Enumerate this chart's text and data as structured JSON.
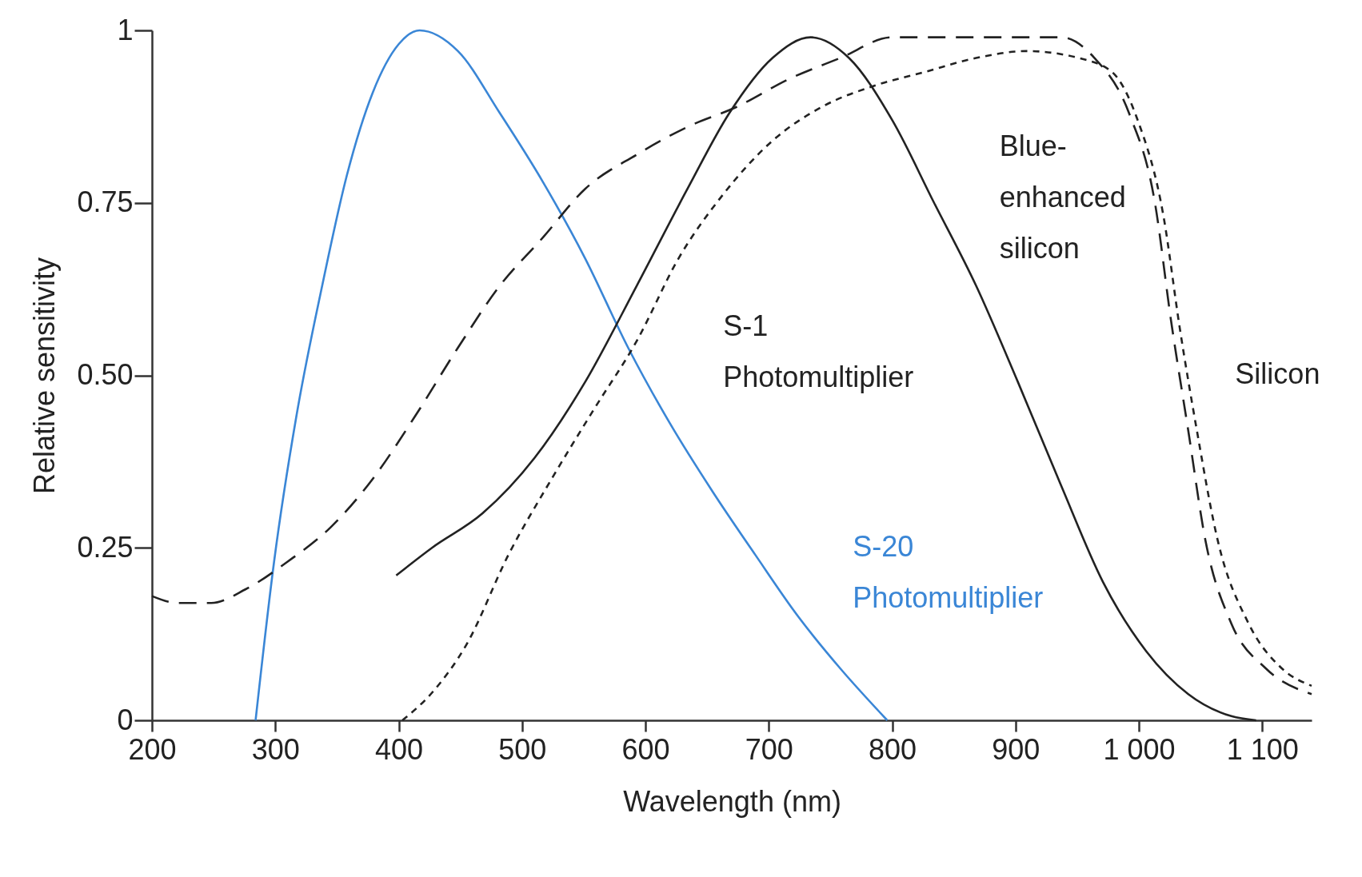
{
  "chart_data": {
    "type": "line",
    "xlabel": "Wavelength (nm)",
    "ylabel": "Relative sensitivity",
    "xlim": [
      200,
      1140
    ],
    "xticks": [
      200,
      300,
      400,
      500,
      600,
      700,
      800,
      900,
      {
        "value": 1000,
        "label": "1 000"
      },
      {
        "value": 1100,
        "label": "1 100"
      }
    ],
    "ylim": [
      0,
      1
    ],
    "yticks": [
      0,
      {
        "value": 0.25,
        "label": "0.25"
      },
      {
        "value": 0.5,
        "label": "0.50"
      },
      {
        "value": 0.75,
        "label": "0.75"
      },
      1
    ],
    "grid": false,
    "legend": false,
    "marker": "none",
    "series": [
      {
        "name": "S-20 Photomultiplier",
        "color": "#3a86d6",
        "line_style": "solid",
        "x": [
          284,
          299,
          317,
          338,
          358,
          379,
          400,
          417,
          448,
          482,
          517,
          551,
          586,
          620,
          655,
          689,
          724,
          758,
          796
        ],
        "values": [
          0,
          0.23,
          0.44,
          0.63,
          0.79,
          0.91,
          0.98,
          1.0,
          0.97,
          0.88,
          0.78,
          0.67,
          0.54,
          0.43,
          0.33,
          0.24,
          0.15,
          0.075,
          0
        ]
      },
      {
        "name": "S-1 Photomultiplier",
        "color": "#222222",
        "line_style": "solid",
        "x": [
          398,
          427,
          468,
          510,
          551,
          593,
          634,
          668,
          703,
          734,
          765,
          800,
          834,
          868,
          902,
          937,
          971,
          1006,
          1040,
          1075,
          1095
        ],
        "values": [
          0.21,
          0.25,
          0.3,
          0.38,
          0.49,
          0.63,
          0.77,
          0.88,
          0.96,
          0.99,
          0.96,
          0.87,
          0.75,
          0.63,
          0.49,
          0.34,
          0.2,
          0.1,
          0.038,
          0.006,
          0
        ]
      },
      {
        "name": "Blue-enhanced silicon",
        "color": "#222222",
        "line_style": "dashed",
        "x": [
          200,
          221,
          248,
          276,
          310,
          345,
          379,
          413,
          448,
          482,
          517,
          551,
          593,
          634,
          675,
          717,
          758,
          800,
          841,
          896,
          937,
          964,
          992,
          1013,
          1026,
          1040,
          1054,
          1075,
          1103,
          1140
        ],
        "values": [
          0.18,
          0.17,
          0.17,
          0.19,
          0.23,
          0.28,
          0.35,
          0.44,
          0.54,
          0.63,
          0.7,
          0.77,
          0.82,
          0.86,
          0.89,
          0.93,
          0.96,
          0.99,
          0.99,
          0.99,
          0.99,
          0.96,
          0.88,
          0.75,
          0.58,
          0.42,
          0.26,
          0.14,
          0.075,
          0.038
        ]
      },
      {
        "name": "Silicon",
        "color": "#222222",
        "line_style": "dotted",
        "x": [
          403,
          427,
          455,
          489,
          524,
          558,
          593,
          627,
          662,
          703,
          744,
          786,
          827,
          868,
          909,
          951,
          978,
          999,
          1020,
          1033,
          1047,
          1064,
          1089,
          1116,
          1140
        ],
        "values": [
          0,
          0.04,
          0.11,
          0.24,
          0.35,
          0.45,
          0.55,
          0.67,
          0.76,
          0.84,
          0.89,
          0.92,
          0.94,
          0.96,
          0.97,
          0.96,
          0.94,
          0.87,
          0.73,
          0.57,
          0.42,
          0.26,
          0.14,
          0.075,
          0.05
        ]
      }
    ]
  }
}
